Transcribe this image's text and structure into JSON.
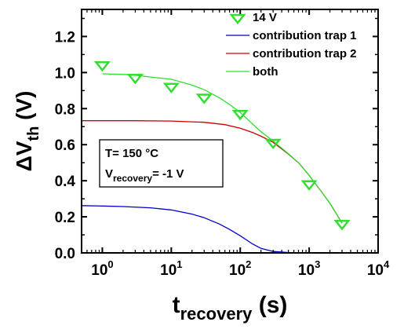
{
  "chart_data": {
    "type": "scatter",
    "title": "",
    "xlabel": {
      "main": "t",
      "sub": "recovery",
      "unit": " (s)"
    },
    "ylabel": {
      "main": "ΔV",
      "sub": "th",
      "unit": " (V)"
    },
    "xscale": "log",
    "xlim": [
      0.5,
      10000
    ],
    "ylim": [
      0,
      1.35
    ],
    "grid": false,
    "legend_position": "top-right",
    "x_ticks": [
      {
        "base": "10",
        "exp": "0",
        "value": 1
      },
      {
        "base": "10",
        "exp": "1",
        "value": 10
      },
      {
        "base": "10",
        "exp": "2",
        "value": 100
      },
      {
        "base": "10",
        "exp": "3",
        "value": 1000
      },
      {
        "base": "10",
        "exp": "4",
        "value": 10000
      }
    ],
    "y_ticks": [
      "0.0",
      "0.2",
      "0.4",
      "0.6",
      "0.8",
      "1.0",
      "1.2"
    ],
    "series": [
      {
        "name": "14 V",
        "kind": "markers",
        "marker": "triangle-down",
        "color": "#33dd33",
        "x": [
          1,
          3,
          10,
          30,
          100,
          300,
          1000,
          3000
        ],
        "y": [
          1.04,
          0.97,
          0.92,
          0.86,
          0.77,
          0.61,
          0.38,
          0.16
        ]
      },
      {
        "name": "contribution trap 1",
        "kind": "line",
        "color": "#0000cc",
        "x": [
          0.5,
          1,
          2,
          5,
          10,
          20,
          30,
          50,
          70,
          100,
          150,
          200,
          300,
          500,
          1000,
          10000
        ],
        "y": [
          0.262,
          0.26,
          0.257,
          0.25,
          0.238,
          0.215,
          0.195,
          0.16,
          0.13,
          0.095,
          0.05,
          0.025,
          0.008,
          0.002,
          0.0,
          0.0
        ]
      },
      {
        "name": "contribution trap 2",
        "kind": "line",
        "color": "#cc0000",
        "x": [
          0.5,
          1,
          3,
          10,
          30,
          60,
          100,
          150,
          200,
          300,
          500,
          700,
          1000,
          1500,
          2000,
          3000
        ],
        "y": [
          0.733,
          0.733,
          0.733,
          0.731,
          0.724,
          0.711,
          0.691,
          0.668,
          0.647,
          0.613,
          0.548,
          0.5,
          0.43,
          0.34,
          0.275,
          0.165
        ]
      },
      {
        "name": "both",
        "kind": "line",
        "color": "#33dd33",
        "x": [
          1,
          2,
          3,
          5,
          10,
          20,
          30,
          50,
          70,
          100,
          150,
          200,
          300,
          500,
          700,
          1000,
          1500,
          2000,
          3000
        ],
        "y": [
          0.993,
          0.99,
          0.985,
          0.975,
          0.963,
          0.93,
          0.905,
          0.86,
          0.823,
          0.779,
          0.716,
          0.672,
          0.62,
          0.55,
          0.5,
          0.43,
          0.34,
          0.275,
          0.165
        ]
      }
    ],
    "annotation": {
      "line1": "T= 150 °C",
      "line2_main": "V",
      "line2_sub": "recovery",
      "line2_rest": "= -1 V"
    }
  }
}
